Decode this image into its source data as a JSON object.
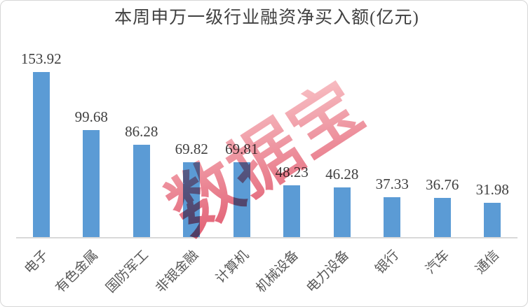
{
  "chart_data": {
    "type": "bar",
    "title": "本周申万一级行业融资净买入额(亿元)",
    "categories": [
      "电子",
      "有色金属",
      "国防军工",
      "非银金融",
      "计算机",
      "机械设备",
      "电力设备",
      "银行",
      "汽车",
      "通信"
    ],
    "values": [
      153.92,
      99.68,
      86.28,
      69.82,
      69.81,
      48.23,
      46.28,
      37.33,
      36.76,
      31.98
    ],
    "value_label_decimals": 2,
    "xlabel": "",
    "ylabel": "",
    "ylim": [
      0,
      160
    ],
    "grid": false,
    "legend": "none",
    "y_axis_visible": false,
    "bar_color": "#5b9bd5"
  },
  "watermark": {
    "text": "数据宝",
    "color_start": "#de4a61",
    "color_end": "#f8bcc1"
  },
  "colors": {
    "background": "#ffffff",
    "frame_border": "#d6d6d6",
    "title": "#404040",
    "value_label": "#3f3f3f",
    "category_label": "#595959",
    "axis_line": "#d9d9d9"
  }
}
